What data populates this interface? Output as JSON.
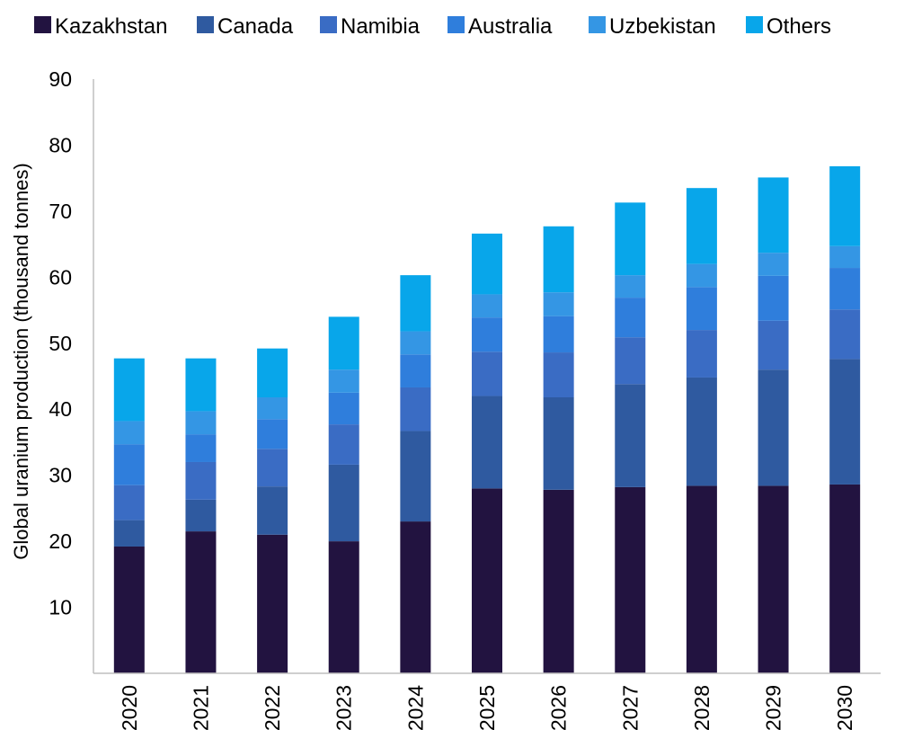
{
  "chart_data": {
    "type": "bar",
    "stacked": true,
    "title": "",
    "xlabel": "",
    "ylabel": "Global uranium production (thousand tonnes)",
    "ylim": [
      0,
      90
    ],
    "yticks": [
      10,
      20,
      30,
      40,
      50,
      60,
      70,
      80,
      90
    ],
    "grid": false,
    "legend_position": "top",
    "categories": [
      "2020",
      "2021",
      "2022",
      "2023",
      "2024",
      "2025",
      "2026",
      "2027",
      "2028",
      "2029",
      "2030"
    ],
    "series": [
      {
        "name": "Kazakhstan",
        "color": "#221340",
        "values": [
          19.2,
          21.5,
          21.0,
          20.0,
          23.0,
          28.0,
          27.8,
          28.2,
          28.4,
          28.4,
          28.6
        ]
      },
      {
        "name": "Canada",
        "color": "#2f5aa0",
        "values": [
          4.0,
          4.8,
          7.3,
          11.6,
          13.7,
          14.0,
          14.0,
          15.6,
          16.4,
          17.6,
          19.0
        ]
      },
      {
        "name": "Namibia",
        "color": "#3a6cc4",
        "values": [
          5.3,
          5.7,
          5.7,
          6.1,
          6.6,
          6.7,
          6.8,
          7.1,
          7.2,
          7.4,
          7.5
        ]
      },
      {
        "name": "Australia",
        "color": "#2f7edc",
        "values": [
          6.2,
          4.2,
          4.5,
          4.8,
          5.0,
          5.2,
          5.5,
          6.0,
          6.5,
          6.8,
          6.3
        ]
      },
      {
        "name": "Uzbekistan",
        "color": "#3496e4",
        "values": [
          3.5,
          3.5,
          3.3,
          3.5,
          3.5,
          3.5,
          3.6,
          3.4,
          3.5,
          3.5,
          3.3
        ]
      },
      {
        "name": "Others",
        "color": "#08a6ea",
        "values": [
          9.5,
          8.0,
          7.4,
          8.0,
          8.5,
          9.2,
          10.0,
          11.0,
          11.5,
          11.4,
          12.1
        ]
      }
    ]
  }
}
